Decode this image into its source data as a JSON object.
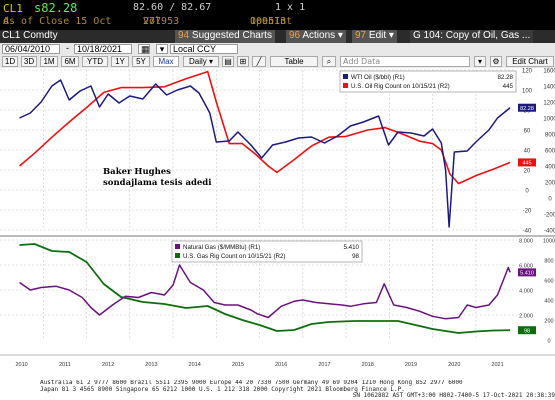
{
  "header": {
    "symbol": "CL1",
    "price": "s82.28",
    "bid_ask": "82.60 / 82.67",
    "size": "1 x 1",
    "as_of": "As of Close 15 Oct",
    "as_of_suffix": "d",
    "vol_label": "Vol",
    "vol_value": "277953",
    "oi_label": "OpenInt",
    "oi_value": "109513"
  },
  "menubar": {
    "ticker": "CL1 Comdty",
    "suggested_num": "94",
    "suggested": "Suggested Charts",
    "actions_num": "96",
    "actions": "Actions ▾",
    "edit_num": "97",
    "edit": "Edit ▾",
    "title": "G 104: Copy of Oil, Gas ..."
  },
  "datebar": {
    "start": "06/04/2010",
    "end": "10/18/2021",
    "currency": "Local CCY"
  },
  "rangebar": {
    "ranges": [
      "1D",
      "3D",
      "1M",
      "6M",
      "YTD",
      "1Y",
      "5Y",
      "Max"
    ],
    "period": "Daily ▾",
    "table": "Table",
    "annotation_placeholder": "Add Data",
    "edit_chart": "Edit Chart"
  },
  "colors": {
    "wti": "#1a1a80",
    "rig_oil": "#ee1010",
    "nat_gas": "#6a1280",
    "rig_gas": "#0e6e0e",
    "grid": "#c8c8c8"
  },
  "annotation": {
    "line1": "Baker Hughes",
    "line2": "sondajlama tesis adedi"
  },
  "chart_data": [
    {
      "type": "line",
      "series": [
        {
          "name": "WTI Oil ($/bbl) (R1)",
          "last": "82.28",
          "x": [
            2010.45,
            2010.7,
            2010.95,
            2011.2,
            2011.4,
            2011.6,
            2011.85,
            2012.1,
            2012.3,
            2012.5,
            2012.75,
            2013.0,
            2013.3,
            2013.6,
            2013.85,
            2014.1,
            2014.4,
            2014.6,
            2014.85,
            2015.0,
            2015.3,
            2015.5,
            2015.8,
            2016.05,
            2016.3,
            2016.6,
            2016.9,
            2017.2,
            2017.5,
            2017.8,
            2018.1,
            2018.4,
            2018.75,
            2018.98,
            2019.2,
            2019.5,
            2019.8,
            2020.0,
            2020.2,
            2020.3,
            2020.38,
            2020.5,
            2020.8,
            2021.0,
            2021.3,
            2021.5,
            2021.79
          ],
          "y": [
            72,
            77,
            88,
            104,
            110,
            90,
            99,
            104,
            83,
            96,
            87,
            94,
            91,
            106,
            95,
            100,
            104,
            97,
            77,
            48,
            49,
            58,
            45,
            32,
            45,
            48,
            52,
            53,
            47,
            54,
            64,
            68,
            74,
            45,
            58,
            57,
            54,
            61,
            47,
            20,
            -37,
            38,
            39,
            48,
            60,
            72,
            82.28
          ]
        },
        {
          "name": "U.S. Oil Rig Count on 10/15/21 (R2)",
          "last": "445",
          "x": [
            2010.45,
            2010.8,
            2011.2,
            2011.6,
            2012.0,
            2012.4,
            2012.8,
            2013.3,
            2013.8,
            2014.3,
            2014.8,
            2015.0,
            2015.3,
            2015.6,
            2015.9,
            2016.2,
            2016.4,
            2016.8,
            2017.2,
            2017.6,
            2018.0,
            2018.5,
            2018.9,
            2019.3,
            2019.7,
            2020.0,
            2020.2,
            2020.4,
            2020.6,
            2021.0,
            2021.4,
            2021.79
          ],
          "y": [
            400,
            560,
            760,
            950,
            1130,
            1320,
            1380,
            1380,
            1390,
            1490,
            1580,
            1200,
            680,
            680,
            550,
            400,
            320,
            480,
            650,
            760,
            770,
            850,
            880,
            800,
            710,
            680,
            600,
            300,
            180,
            280,
            360,
            445
          ]
        }
      ],
      "xlim": [
        2010,
        2021.95
      ],
      "y1lim": [
        -40,
        120
      ],
      "y1ticks": [
        -40,
        -20,
        0,
        20,
        40,
        60,
        80,
        100,
        120
      ],
      "y2lim": [
        -400,
        1600
      ],
      "y2ticks": [
        -400,
        -200,
        0,
        200,
        400,
        600,
        800,
        1000,
        1200,
        1400,
        1600
      ],
      "legend": "top-right"
    },
    {
      "type": "line",
      "series": [
        {
          "name": "Natural Gas ($/MMBtu) (R1)",
          "last": "5.410",
          "x": [
            2010.45,
            2010.7,
            2010.95,
            2011.3,
            2011.6,
            2011.9,
            2012.1,
            2012.3,
            2012.6,
            2012.9,
            2013.2,
            2013.5,
            2013.8,
            2014.0,
            2014.15,
            2014.4,
            2014.7,
            2014.95,
            2015.2,
            2015.5,
            2015.8,
            2015.95,
            2016.2,
            2016.5,
            2016.8,
            2017.0,
            2017.3,
            2017.6,
            2017.9,
            2018.1,
            2018.4,
            2018.7,
            2018.88,
            2019.1,
            2019.4,
            2019.7,
            2020.0,
            2020.3,
            2020.6,
            2020.8,
            2021.0,
            2021.3,
            2021.5,
            2021.75,
            2021.79
          ],
          "y": [
            4.6,
            4.0,
            4.2,
            4.3,
            4.0,
            3.4,
            2.6,
            2.0,
            2.8,
            3.5,
            3.4,
            3.8,
            3.6,
            4.4,
            6.0,
            4.6,
            4.0,
            3.0,
            2.8,
            2.8,
            2.4,
            2.1,
            1.8,
            2.7,
            3.1,
            3.2,
            3.0,
            2.9,
            2.8,
            2.7,
            2.9,
            3.0,
            4.5,
            2.8,
            2.6,
            2.3,
            1.9,
            1.7,
            1.8,
            2.8,
            2.6,
            2.8,
            3.6,
            5.8,
            5.41
          ]
        },
        {
          "name": "U.S. Gas Rig Count on 10/15/21 (R2)",
          "last": "98",
          "x": [
            2010.45,
            2010.8,
            2011.2,
            2011.6,
            2012.0,
            2012.4,
            2012.8,
            2013.3,
            2013.8,
            2014.3,
            2014.8,
            2015.2,
            2015.6,
            2016.0,
            2016.4,
            2016.8,
            2017.2,
            2017.6,
            2018.2,
            2018.8,
            2019.2,
            2019.6,
            2020.0,
            2020.3,
            2020.6,
            2021.0,
            2021.4,
            2021.79
          ],
          "y": [
            950,
            960,
            890,
            880,
            780,
            560,
            430,
            380,
            360,
            320,
            340,
            260,
            200,
            150,
            90,
            100,
            160,
            180,
            190,
            190,
            190,
            150,
            110,
            90,
            70,
            85,
            95,
            98
          ]
        }
      ],
      "xlim": [
        2010,
        2021.95
      ],
      "xticks": [
        "2010",
        "2011",
        "2012",
        "2013",
        "2014",
        "2015",
        "2016",
        "2017",
        "2018",
        "2019",
        "2020",
        "2021"
      ],
      "y1lim": [
        0,
        8
      ],
      "y1ticks": [
        "2.000",
        "4.000",
        "6.000",
        "8.000"
      ],
      "y2lim": [
        0,
        1000
      ],
      "y2ticks": [
        0,
        200,
        400,
        600,
        800,
        1000
      ],
      "legend": "top-right"
    }
  ],
  "footer": {
    "line1": "Australia 61 2 9777 8600 Brazil 5511 2395 9000 Europe 44 20 7330 7500 Germany 49 69 9204 1210 Hong Kong 852 2977 6000",
    "line2": "Japan 81 3 4565 8900        Singapore 65 6212 1000       U.S. 1 212 318 2000       Copyright 2021 Bloomberg Finance L.P.",
    "line3": "SN 1062882 AST  GMT+3:00 H802-7400-5 17-Oct-2021 20:38:39"
  }
}
